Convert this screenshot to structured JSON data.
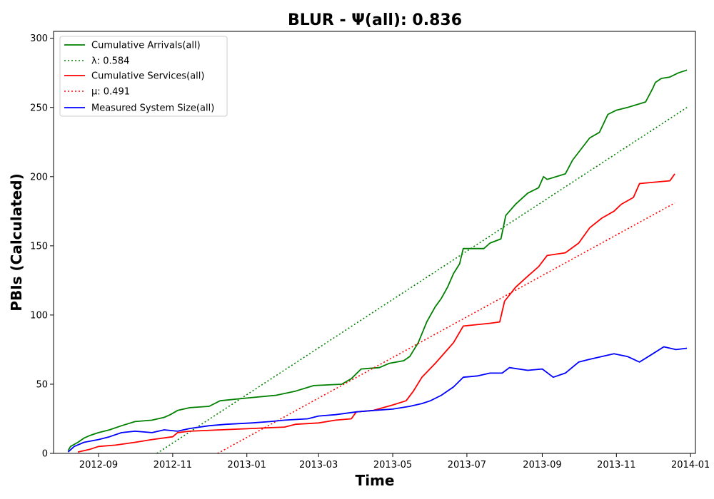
{
  "chart_data": {
    "type": "line",
    "title": "BLUR -  Ψ(all): 0.836",
    "xlabel": "Time",
    "ylabel": "PBIs (Calculated)",
    "xlim": [
      "2012-07-26",
      "2014-01-05"
    ],
    "ylim": [
      0,
      305
    ],
    "x_tick_labels": [
      "2012-09",
      "2012-11",
      "2013-01",
      "2013-03",
      "2013-05",
      "2013-07",
      "2013-09",
      "2013-11",
      "2014-01"
    ],
    "y_tick_labels": [
      "0",
      "50",
      "100",
      "150",
      "200",
      "250",
      "300"
    ],
    "legend_position": "upper-left",
    "grid": false,
    "series": [
      {
        "name": "Cumulative Arrivals(all)",
        "color": "#008000",
        "style": "solid",
        "points": [
          [
            "2012-08-07",
            2
          ],
          [
            "2012-08-09",
            5
          ],
          [
            "2012-08-15",
            8
          ],
          [
            "2012-08-20",
            11
          ],
          [
            "2012-08-25",
            13
          ],
          [
            "2012-09-01",
            15
          ],
          [
            "2012-09-10",
            17
          ],
          [
            "2012-09-20",
            20
          ],
          [
            "2012-10-01",
            23
          ],
          [
            "2012-10-15",
            24
          ],
          [
            "2012-10-25",
            26
          ],
          [
            "2012-10-30",
            28
          ],
          [
            "2012-11-05",
            31
          ],
          [
            "2012-11-15",
            33
          ],
          [
            "2012-12-01",
            34
          ],
          [
            "2012-12-10",
            38
          ],
          [
            "2013-01-01",
            40
          ],
          [
            "2013-01-25",
            42
          ],
          [
            "2013-02-10",
            45
          ],
          [
            "2013-02-25",
            49
          ],
          [
            "2013-03-20",
            50
          ],
          [
            "2013-03-28",
            54
          ],
          [
            "2013-04-05",
            61
          ],
          [
            "2013-04-20",
            62
          ],
          [
            "2013-04-28",
            65
          ],
          [
            "2013-05-10",
            67
          ],
          [
            "2013-05-15",
            70
          ],
          [
            "2013-05-22",
            80
          ],
          [
            "2013-05-29",
            95
          ],
          [
            "2013-06-05",
            106
          ],
          [
            "2013-06-10",
            112
          ],
          [
            "2013-06-15",
            120
          ],
          [
            "2013-06-20",
            130
          ],
          [
            "2013-06-25",
            137
          ],
          [
            "2013-06-28",
            148
          ],
          [
            "2013-07-15",
            148
          ],
          [
            "2013-07-20",
            152
          ],
          [
            "2013-07-29",
            155
          ],
          [
            "2013-08-02",
            172
          ],
          [
            "2013-08-10",
            180
          ],
          [
            "2013-08-20",
            188
          ],
          [
            "2013-08-29",
            192
          ],
          [
            "2013-09-02",
            200
          ],
          [
            "2013-09-05",
            198
          ],
          [
            "2013-09-20",
            202
          ],
          [
            "2013-09-26",
            212
          ],
          [
            "2013-10-03",
            220
          ],
          [
            "2013-10-10",
            228
          ],
          [
            "2013-10-18",
            232
          ],
          [
            "2013-10-25",
            245
          ],
          [
            "2013-11-01",
            248
          ],
          [
            "2013-11-10",
            250
          ],
          [
            "2013-11-25",
            254
          ],
          [
            "2013-12-01",
            264
          ],
          [
            "2013-12-03",
            268
          ],
          [
            "2013-12-08",
            271
          ],
          [
            "2013-12-15",
            272
          ],
          [
            "2013-12-22",
            275
          ],
          [
            "2013-12-29",
            277
          ]
        ]
      },
      {
        "name": "λ: 0.584",
        "color": "#008000",
        "style": "dotted",
        "points": [
          [
            "2012-10-19",
            0
          ],
          [
            "2013-12-29",
            250
          ]
        ]
      },
      {
        "name": "Cumulative Services(all)",
        "color": "#ff0000",
        "style": "solid",
        "points": [
          [
            "2012-08-15",
            1
          ],
          [
            "2012-08-25",
            3
          ],
          [
            "2012-09-01",
            5
          ],
          [
            "2012-09-15",
            6
          ],
          [
            "2012-10-01",
            8
          ],
          [
            "2012-10-15",
            10
          ],
          [
            "2012-11-01",
            12
          ],
          [
            "2012-11-05",
            15
          ],
          [
            "2012-11-15",
            16
          ],
          [
            "2012-12-10",
            17
          ],
          [
            "2013-01-05",
            18
          ],
          [
            "2013-02-01",
            19
          ],
          [
            "2013-02-10",
            21
          ],
          [
            "2013-03-01",
            22
          ],
          [
            "2013-03-15",
            24
          ],
          [
            "2013-03-28",
            25
          ],
          [
            "2013-04-01",
            30
          ],
          [
            "2013-04-15",
            31
          ],
          [
            "2013-05-01",
            35
          ],
          [
            "2013-05-12",
            38
          ],
          [
            "2013-05-18",
            45
          ],
          [
            "2013-05-25",
            55
          ],
          [
            "2013-06-05",
            65
          ],
          [
            "2013-06-15",
            75
          ],
          [
            "2013-06-20",
            80
          ],
          [
            "2013-06-28",
            92
          ],
          [
            "2013-07-20",
            94
          ],
          [
            "2013-07-28",
            95
          ],
          [
            "2013-08-01",
            110
          ],
          [
            "2013-08-10",
            120
          ],
          [
            "2013-08-20",
            128
          ],
          [
            "2013-08-29",
            135
          ],
          [
            "2013-09-05",
            143
          ],
          [
            "2013-09-20",
            145
          ],
          [
            "2013-10-01",
            152
          ],
          [
            "2013-10-10",
            163
          ],
          [
            "2013-10-20",
            170
          ],
          [
            "2013-10-30",
            175
          ],
          [
            "2013-11-05",
            180
          ],
          [
            "2013-11-15",
            185
          ],
          [
            "2013-11-20",
            195
          ],
          [
            "2013-12-15",
            197
          ],
          [
            "2013-12-19",
            202
          ]
        ]
      },
      {
        "name": "μ: 0.491",
        "color": "#ff0000",
        "style": "dotted",
        "points": [
          [
            "2012-12-08",
            0
          ],
          [
            "2013-12-19",
            181
          ]
        ]
      },
      {
        "name": "Measured System Size(all)",
        "color": "#0000ff",
        "style": "solid",
        "points": [
          [
            "2012-08-07",
            1
          ],
          [
            "2012-08-12",
            5
          ],
          [
            "2012-08-20",
            8
          ],
          [
            "2012-09-01",
            10
          ],
          [
            "2012-09-10",
            12
          ],
          [
            "2012-09-20",
            15
          ],
          [
            "2012-10-01",
            16
          ],
          [
            "2012-10-15",
            15
          ],
          [
            "2012-10-25",
            17
          ],
          [
            "2012-11-05",
            16
          ],
          [
            "2012-11-15",
            18
          ],
          [
            "2012-12-01",
            20
          ],
          [
            "2012-12-15",
            21
          ],
          [
            "2013-01-05",
            22
          ],
          [
            "2013-01-20",
            23
          ],
          [
            "2013-02-01",
            24
          ],
          [
            "2013-02-20",
            25
          ],
          [
            "2013-03-01",
            27
          ],
          [
            "2013-03-15",
            28
          ],
          [
            "2013-04-01",
            30
          ],
          [
            "2013-04-15",
            31
          ],
          [
            "2013-05-01",
            32
          ],
          [
            "2013-05-15",
            34
          ],
          [
            "2013-05-25",
            36
          ],
          [
            "2013-06-01",
            38
          ],
          [
            "2013-06-10",
            42
          ],
          [
            "2013-06-20",
            48
          ],
          [
            "2013-06-28",
            55
          ],
          [
            "2013-07-10",
            56
          ],
          [
            "2013-07-20",
            58
          ],
          [
            "2013-07-30",
            58
          ],
          [
            "2013-08-05",
            62
          ],
          [
            "2013-08-20",
            60
          ],
          [
            "2013-09-01",
            61
          ],
          [
            "2013-09-10",
            55
          ],
          [
            "2013-09-20",
            58
          ],
          [
            "2013-10-01",
            66
          ],
          [
            "2013-10-10",
            68
          ],
          [
            "2013-10-20",
            70
          ],
          [
            "2013-10-30",
            72
          ],
          [
            "2013-11-10",
            70
          ],
          [
            "2013-11-20",
            66
          ],
          [
            "2013-12-01",
            72
          ],
          [
            "2013-12-10",
            77
          ],
          [
            "2013-12-20",
            75
          ],
          [
            "2013-12-29",
            76
          ]
        ]
      }
    ]
  }
}
